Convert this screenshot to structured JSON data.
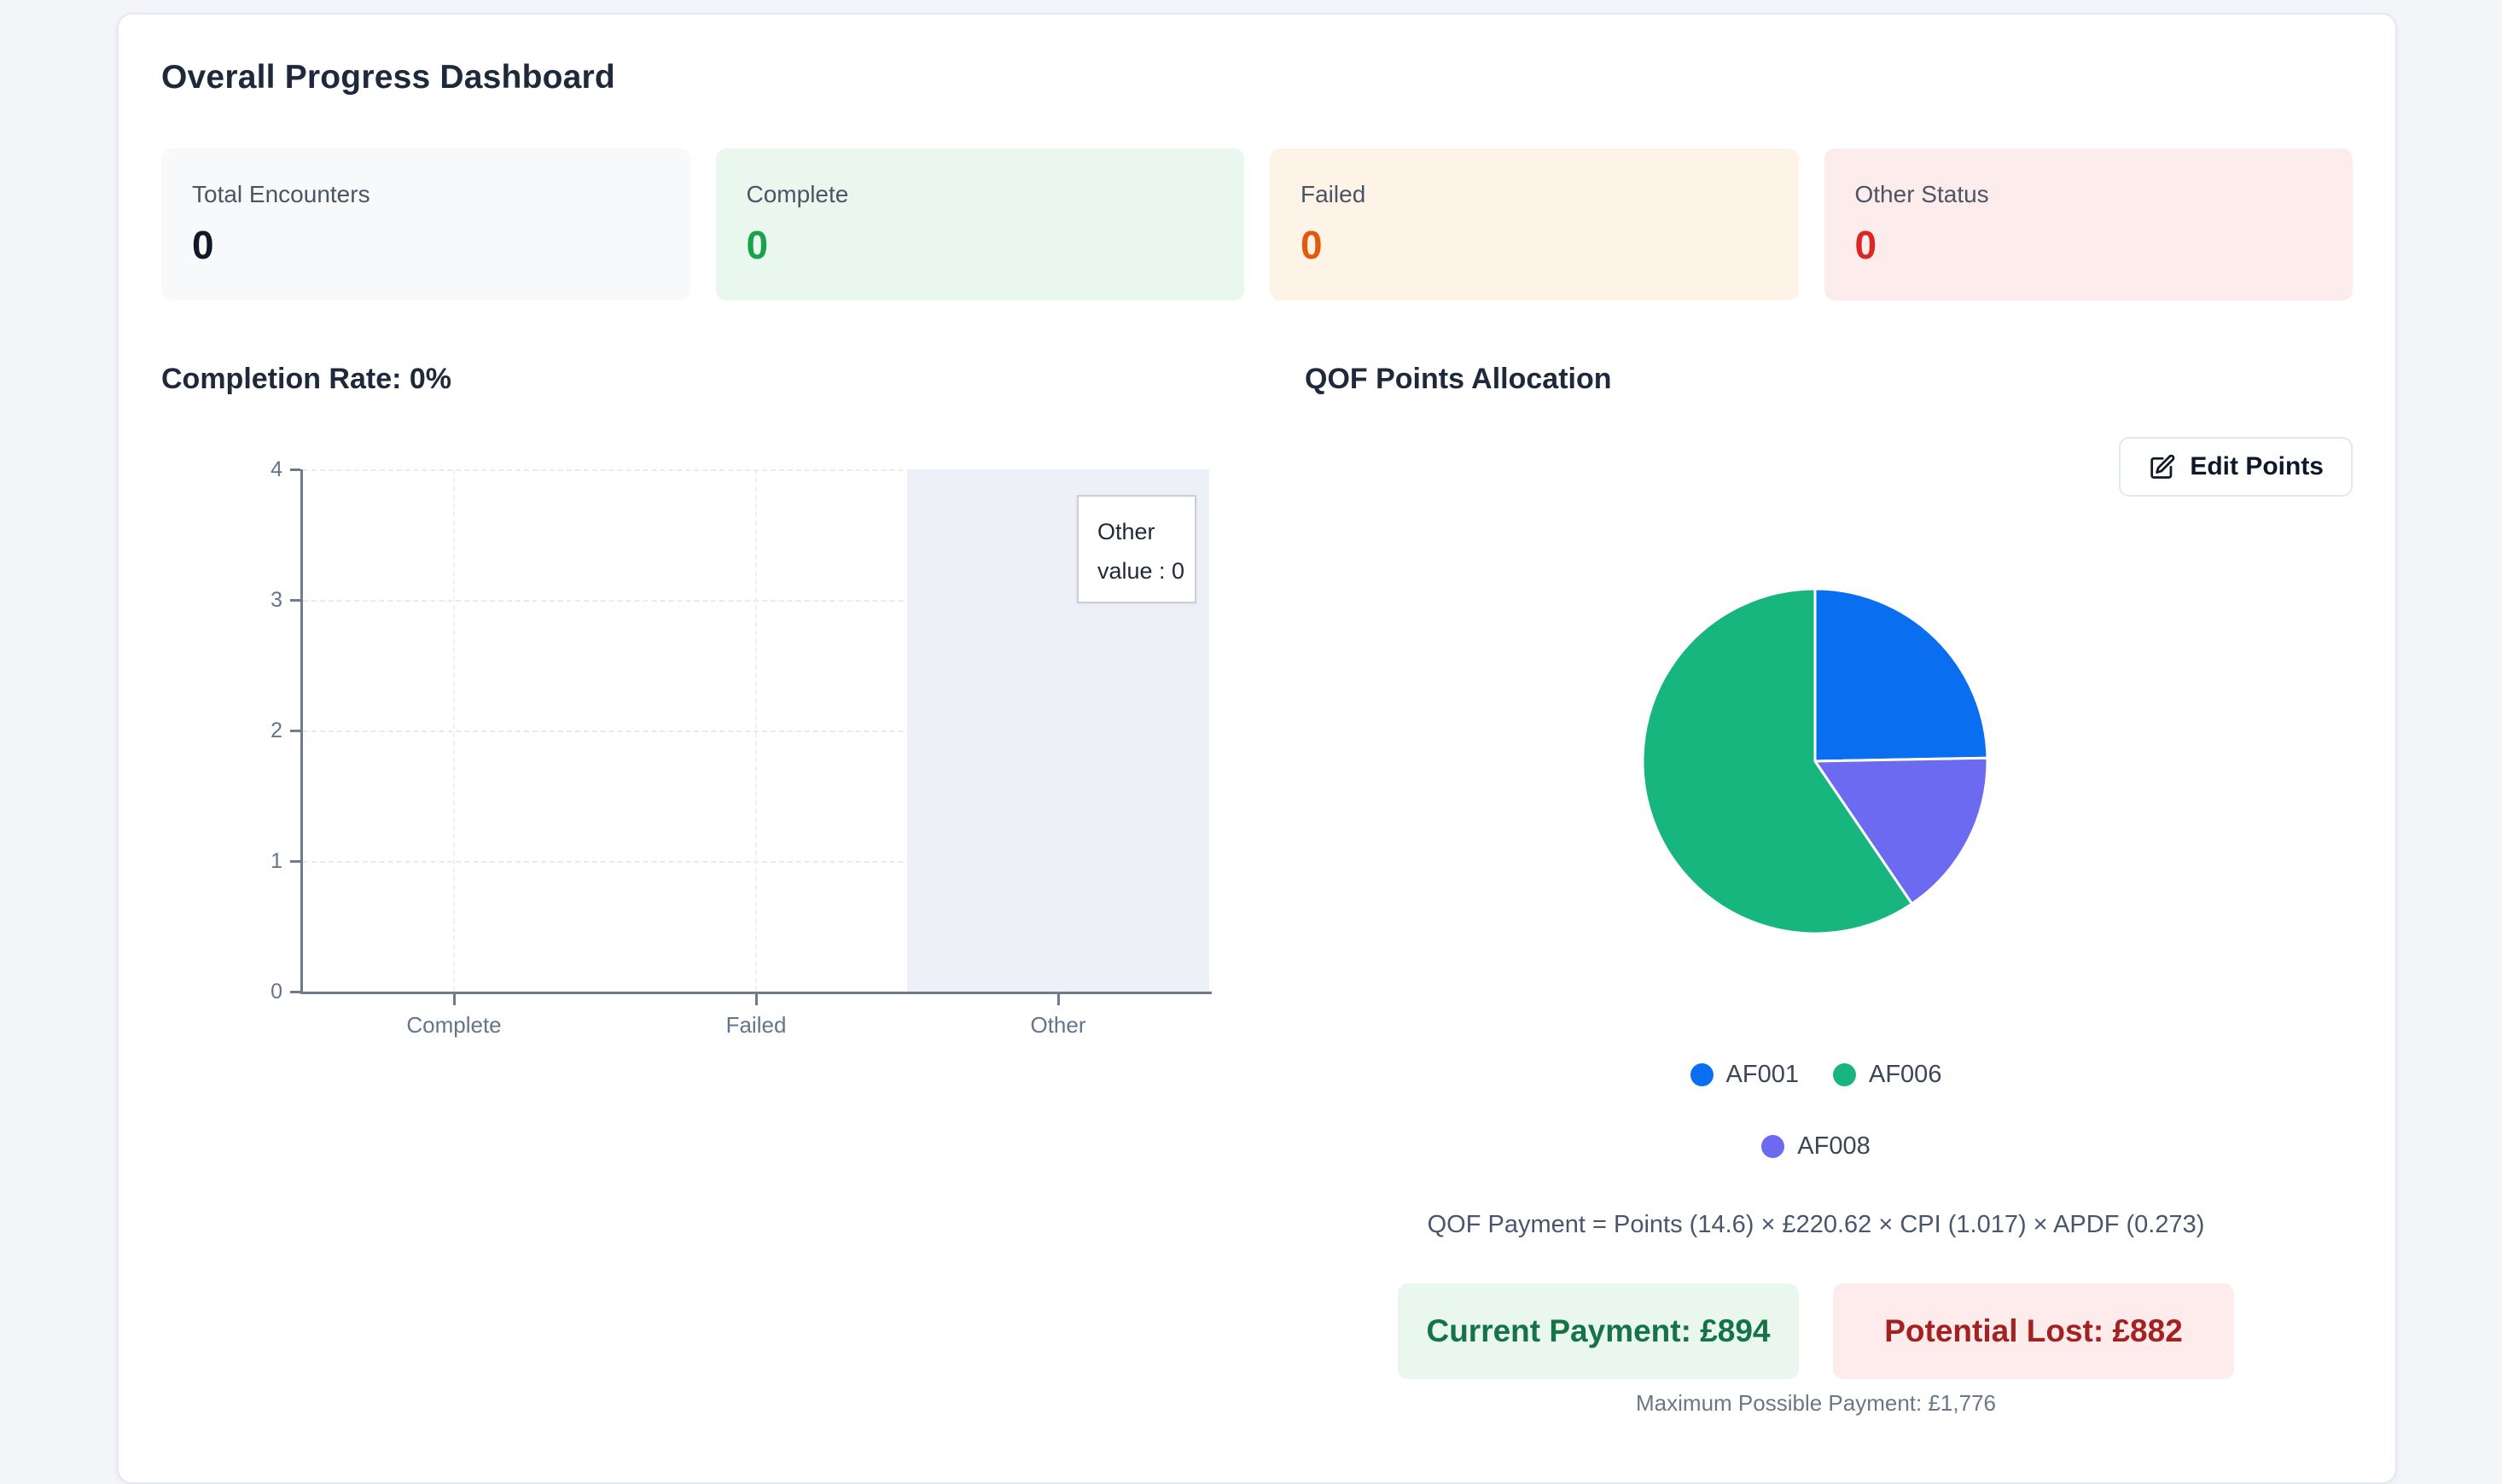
{
  "header": {
    "title": "Overall Progress Dashboard"
  },
  "stats": [
    {
      "label": "Total Encounters",
      "value": "0",
      "bg": "#f8f9fb",
      "color": "#111827"
    },
    {
      "label": "Complete",
      "value": "0",
      "bg": "#e9f7ef",
      "color": "#18a34a"
    },
    {
      "label": "Failed",
      "value": "0",
      "bg": "#fdf3e7",
      "color": "#e2590c"
    },
    {
      "label": "Other Status",
      "value": "0",
      "bg": "#fdecec",
      "color": "#dc2626"
    }
  ],
  "sections": {
    "completion_title": "Completion Rate: 0%",
    "qof_title": "QOF Points Allocation",
    "edit_points_label": "Edit Points"
  },
  "chart_data": [
    {
      "type": "bar",
      "title": "Completion Rate: 0%",
      "categories": [
        "Complete",
        "Failed",
        "Other"
      ],
      "values": [
        0,
        0,
        0
      ],
      "ylim": [
        0,
        4
      ],
      "yticks": [
        0,
        1,
        2,
        3,
        4
      ],
      "grid": true,
      "legend_position": "none",
      "highlighted_category": "Other",
      "tooltip": {
        "title": "Other",
        "value_line": "value : 0"
      }
    },
    {
      "type": "pie",
      "title": "QOF Points Allocation",
      "slices": [
        {
          "label": "AF001",
          "percent": 24.7,
          "color": "#0a6ef0"
        },
        {
          "label": "AF008",
          "percent": 15.8,
          "color": "#6b6af0"
        },
        {
          "label": "AF006",
          "percent": 59.5,
          "color": "#17b67e"
        }
      ],
      "start_angle_deg": 0,
      "legend_rows": [
        [
          "AF001",
          "AF006"
        ],
        [
          "AF008"
        ]
      ],
      "legend_position": "bottom"
    }
  ],
  "payment": {
    "formula": "QOF Payment = Points (14.6) × £220.62 × CPI (1.017) × APDF (0.273)",
    "current": "Current Payment: £894",
    "lost": "Potential Lost: £882",
    "max": "Maximum Possible Payment: £1,776"
  }
}
